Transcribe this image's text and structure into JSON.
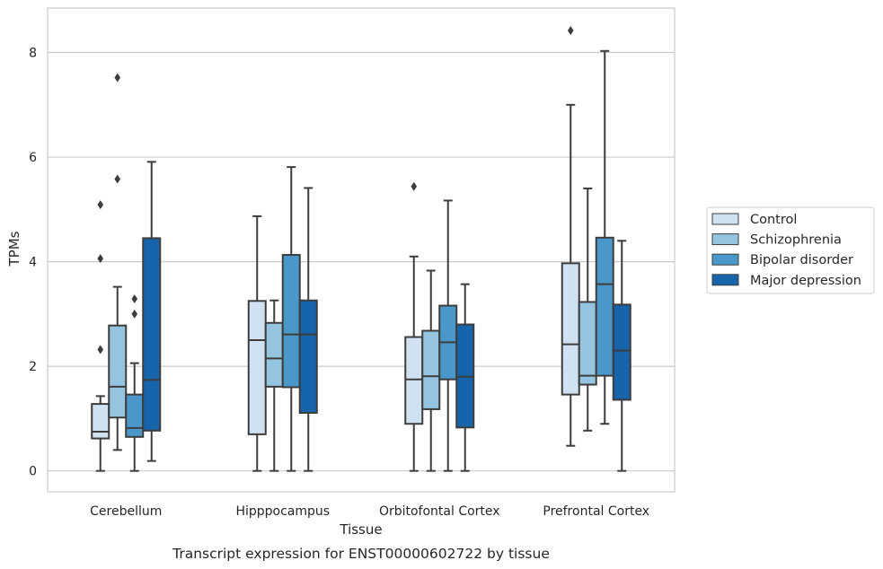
{
  "chart_data": {
    "type": "boxplot",
    "caption": "Transcript expression for ENST00000602722 by tissue",
    "xlabel": "Tissue",
    "ylabel": "TPMs",
    "ylim": [
      -0.4,
      8.85
    ],
    "yticks": [
      0,
      2,
      4,
      6,
      8
    ],
    "grid": "horizontal",
    "legend_position": "right",
    "categories": [
      "Cerebellum",
      "Hipppocampus",
      "Orbitofontal Cortex",
      "Prefrontal Cortex"
    ],
    "series": [
      {
        "name": "Control",
        "color": "#d0e1f2",
        "boxes": [
          {
            "whislo": 0,
            "q1": 0.62,
            "med": 0.75,
            "q3": 1.28,
            "whishi": 1.43,
            "fliers": [
              2.32,
              4.06,
              5.09
            ]
          },
          {
            "whislo": 0,
            "q1": 0.7,
            "med": 2.5,
            "q3": 3.25,
            "whishi": 4.87,
            "fliers": []
          },
          {
            "whislo": 0,
            "q1": 0.9,
            "med": 1.75,
            "q3": 2.56,
            "whishi": 4.1,
            "fliers": [
              5.44
            ]
          },
          {
            "whislo": 0.48,
            "q1": 1.46,
            "med": 2.42,
            "q3": 3.97,
            "whishi": 7.0,
            "fliers": [
              8.42
            ]
          }
        ]
      },
      {
        "name": "Schizophrenia",
        "color": "#94c4df",
        "boxes": [
          {
            "whislo": 0.4,
            "q1": 1.02,
            "med": 1.61,
            "q3": 2.78,
            "whishi": 3.52,
            "fliers": [
              5.58,
              7.52
            ]
          },
          {
            "whislo": 0,
            "q1": 1.61,
            "med": 2.15,
            "q3": 2.83,
            "whishi": 3.26,
            "fliers": []
          },
          {
            "whislo": 0,
            "q1": 1.18,
            "med": 1.81,
            "q3": 2.68,
            "whishi": 3.83,
            "fliers": []
          },
          {
            "whislo": 0.77,
            "q1": 1.65,
            "med": 1.82,
            "q3": 3.23,
            "whishi": 5.4,
            "fliers": []
          }
        ]
      },
      {
        "name": "Bipolar disorder",
        "color": "#4a98c9",
        "boxes": [
          {
            "whislo": 0,
            "q1": 0.65,
            "med": 0.82,
            "q3": 1.46,
            "whishi": 2.06,
            "fliers": [
              3.0,
              3.29
            ]
          },
          {
            "whislo": 0,
            "q1": 1.6,
            "med": 2.61,
            "q3": 4.13,
            "whishi": 5.81,
            "fliers": []
          },
          {
            "whislo": 0,
            "q1": 1.75,
            "med": 2.46,
            "q3": 3.16,
            "whishi": 5.17,
            "fliers": []
          },
          {
            "whislo": 0.9,
            "q1": 1.82,
            "med": 3.57,
            "q3": 4.46,
            "whishi": 8.03,
            "fliers": []
          }
        ]
      },
      {
        "name": "Major depression",
        "color": "#1764ab",
        "boxes": [
          {
            "whislo": 0.19,
            "q1": 0.77,
            "med": 1.74,
            "q3": 4.45,
            "whishi": 5.91,
            "fliers": []
          },
          {
            "whislo": 0,
            "q1": 1.11,
            "med": 2.61,
            "q3": 3.26,
            "whishi": 5.41,
            "fliers": []
          },
          {
            "whislo": 0,
            "q1": 0.83,
            "med": 1.8,
            "q3": 2.8,
            "whishi": 3.57,
            "fliers": []
          },
          {
            "whislo": 0,
            "q1": 1.36,
            "med": 2.3,
            "q3": 3.18,
            "whishi": 4.4,
            "fliers": []
          }
        ]
      }
    ]
  }
}
